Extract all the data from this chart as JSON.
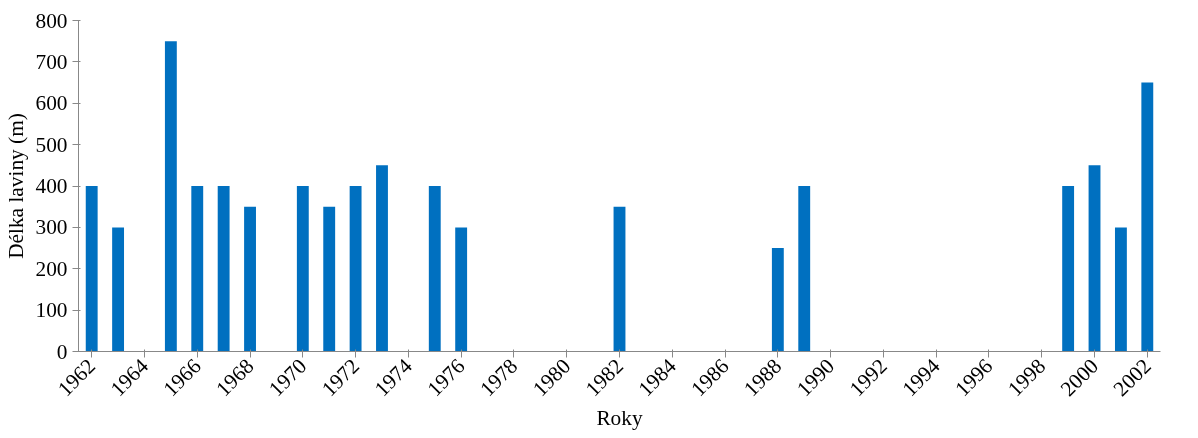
{
  "chart_data": {
    "type": "bar",
    "xlabel": "Roky",
    "ylabel": "Délka laviny (m)",
    "categories": [
      "1962",
      null,
      "1964",
      null,
      "1966",
      null,
      "1968",
      null,
      "1970",
      null,
      "1972",
      null,
      "1974",
      null,
      "1976",
      null,
      "1978",
      null,
      "1980",
      null,
      "1982",
      null,
      "1984",
      null,
      "1986",
      null,
      "1988",
      null,
      "1990",
      null,
      "1992",
      null,
      "1994",
      null,
      "1996",
      null,
      "1998",
      null,
      "2000",
      null,
      "2002"
    ],
    "values": [
      400,
      300,
      null,
      750,
      400,
      400,
      350,
      null,
      400,
      350,
      400,
      450,
      null,
      400,
      300,
      null,
      null,
      null,
      null,
      null,
      350,
      null,
      null,
      null,
      null,
      null,
      250,
      400,
      null,
      null,
      null,
      null,
      null,
      null,
      null,
      null,
      null,
      400,
      450,
      300,
      650
    ],
    "color": "#0070c0",
    "ylim": [
      0,
      800
    ],
    "yticks": [
      0,
      100,
      200,
      300,
      400,
      500,
      600,
      700,
      800
    ],
    "grid": false
  }
}
